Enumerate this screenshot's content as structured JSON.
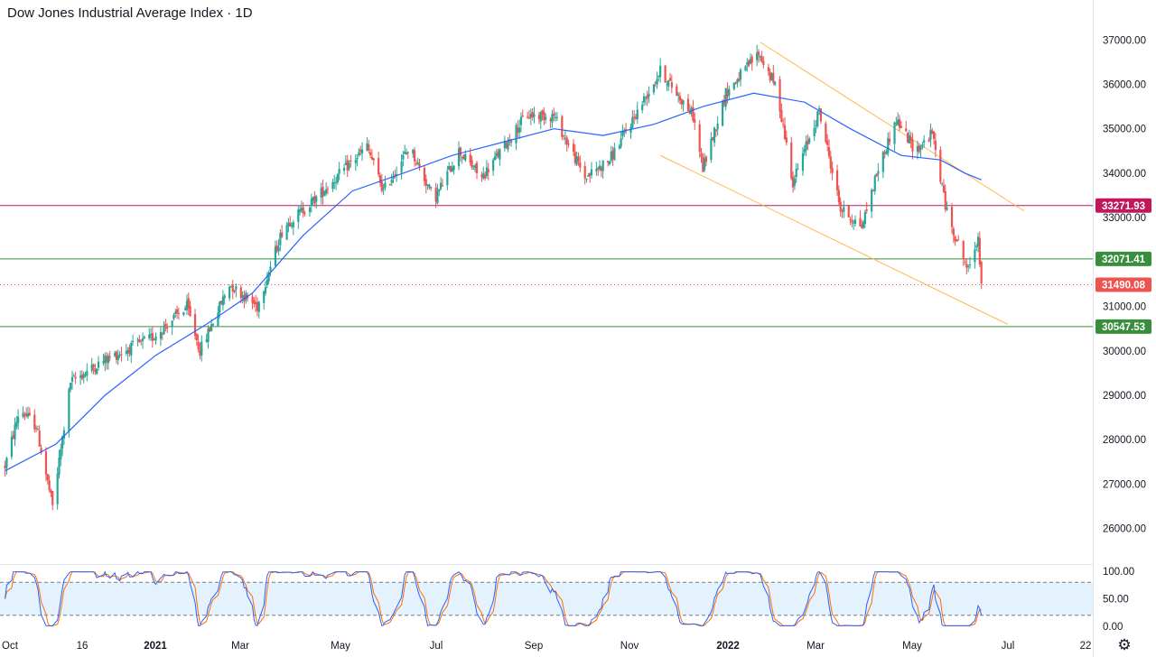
{
  "header": {
    "title": "Dow Jones Industrial Average Index · 1D"
  },
  "colors": {
    "up": "#26a69a",
    "down": "#ef5350",
    "ma": "#2962ff",
    "stoch_k": "#2962ff",
    "stoch_d": "#ff6d00",
    "resistance": "#c2185b",
    "support": "#388e3c",
    "channel": "#ffb74d",
    "band_fill": "#e3f2fd"
  },
  "chart_data": [
    {
      "type": "candlestick",
      "title": "Dow Jones Industrial Average Index · 1D",
      "ylim": [
        25200,
        37900
      ],
      "y_ticks": [
        "37000.00",
        "36000.00",
        "35000.00",
        "34000.00",
        "33000.00",
        "32000.00",
        "31000.00",
        "30000.00",
        "29000.00",
        "28000.00",
        "27000.00",
        "26000.00"
      ],
      "x_ticks": [
        "Oct",
        "16",
        "2021",
        "Mar",
        "May",
        "Jul",
        "Sep",
        "Nov",
        "2022",
        "Mar",
        "May",
        "Jul",
        "22"
      ],
      "price_path": [
        [
          "2020-10-01",
          27400
        ],
        [
          "2020-10-10",
          28700
        ],
        [
          "2020-10-20",
          28300
        ],
        [
          "2020-10-30",
          26500
        ],
        [
          "2020-11-10",
          29300
        ],
        [
          "2020-12-01",
          29800
        ],
        [
          "2020-12-30",
          30300
        ],
        [
          "2021-01-20",
          31000
        ],
        [
          "2021-01-28",
          30000
        ],
        [
          "2021-02-15",
          31500
        ],
        [
          "2021-03-04",
          31000
        ],
        [
          "2021-03-20",
          32800
        ],
        [
          "2021-04-05",
          33300
        ],
        [
          "2021-05-10",
          34600
        ],
        [
          "2021-05-20",
          33600
        ],
        [
          "2021-06-05",
          34600
        ],
        [
          "2021-06-20",
          33400
        ],
        [
          "2021-07-05",
          34500
        ],
        [
          "2021-07-19",
          33900
        ],
        [
          "2021-08-15",
          35300
        ],
        [
          "2021-09-01",
          35300
        ],
        [
          "2021-09-20",
          33900
        ],
        [
          "2021-10-05",
          34300
        ],
        [
          "2021-11-05",
          36300
        ],
        [
          "2021-11-25",
          35300
        ],
        [
          "2021-12-01",
          34100
        ],
        [
          "2021-12-15",
          35800
        ],
        [
          "2022-01-04",
          36700
        ],
        [
          "2022-01-15",
          35900
        ],
        [
          "2022-01-25",
          33800
        ],
        [
          "2022-02-10",
          35400
        ],
        [
          "2022-02-23",
          33200
        ],
        [
          "2022-03-08",
          32800
        ],
        [
          "2022-03-18",
          34100
        ],
        [
          "2022-03-29",
          35200
        ],
        [
          "2022-04-10",
          34500
        ],
        [
          "2022-04-20",
          34900
        ],
        [
          "2022-04-29",
          33100
        ],
        [
          "2022-05-12",
          31800
        ],
        [
          "2022-05-18",
          32600
        ],
        [
          "2022-05-20",
          31490
        ]
      ],
      "moving_average": [
        [
          "2020-10-01",
          27300
        ],
        [
          "2020-11-01",
          27900
        ],
        [
          "2020-12-01",
          29000
        ],
        [
          "2021-01-01",
          29900
        ],
        [
          "2021-02-01",
          30600
        ],
        [
          "2021-03-01",
          31300
        ],
        [
          "2021-04-01",
          32600
        ],
        [
          "2021-05-01",
          33600
        ],
        [
          "2021-06-01",
          34000
        ],
        [
          "2021-07-01",
          34400
        ],
        [
          "2021-08-01",
          34700
        ],
        [
          "2021-09-01",
          35000
        ],
        [
          "2021-10-01",
          34850
        ],
        [
          "2021-11-01",
          35100
        ],
        [
          "2021-12-01",
          35500
        ],
        [
          "2022-01-01",
          35800
        ],
        [
          "2022-02-01",
          35600
        ],
        [
          "2022-03-01",
          35000
        ],
        [
          "2022-04-01",
          34400
        ],
        [
          "2022-04-25",
          34300
        ],
        [
          "2022-05-10",
          34000
        ],
        [
          "2022-05-20",
          33850
        ]
      ],
      "levels": [
        {
          "value": 33271.93,
          "label": "33271.93",
          "kind": "resistance"
        },
        {
          "value": 32071.41,
          "label": "32071.41",
          "kind": "support"
        },
        {
          "value": 31490.08,
          "label": "31490.08",
          "kind": "last"
        },
        {
          "value": 30547.53,
          "label": "30547.53",
          "kind": "support"
        }
      ],
      "channel": {
        "upper": [
          [
            "2022-01-05",
            36950
          ],
          [
            "2022-06-15",
            33150
          ]
        ],
        "lower": [
          [
            "2021-11-05",
            34400
          ],
          [
            "2022-06-05",
            30600
          ]
        ]
      }
    },
    {
      "type": "line",
      "ylim": [
        0,
        100
      ],
      "y_ticks": [
        "100.00",
        "50.00",
        "0.00"
      ],
      "band": [
        20,
        80
      ]
    }
  ]
}
